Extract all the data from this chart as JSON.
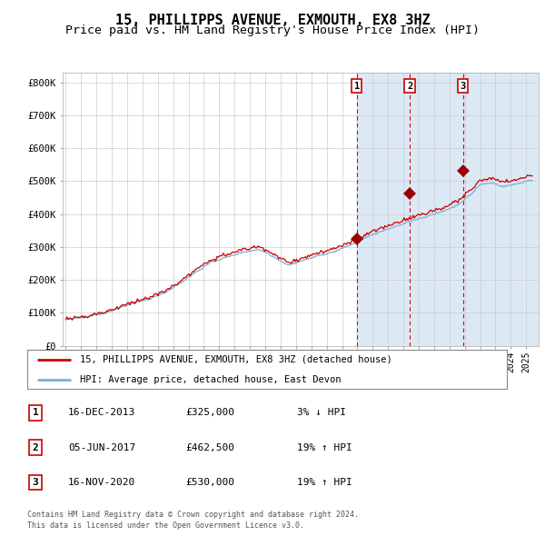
{
  "title": "15, PHILLIPPS AVENUE, EXMOUTH, EX8 3HZ",
  "subtitle": "Price paid vs. HM Land Registry's House Price Index (HPI)",
  "title_fontsize": 11,
  "subtitle_fontsize": 9.5,
  "sale_times": [
    2013.96,
    2017.42,
    2020.88
  ],
  "sale_prices": [
    325000,
    462500,
    530000
  ],
  "sale_labels": [
    "1",
    "2",
    "3"
  ],
  "legend_line1": "15, PHILLIPPS AVENUE, EXMOUTH, EX8 3HZ (detached house)",
  "legend_line2": "HPI: Average price, detached house, East Devon",
  "table_rows": [
    {
      "num": "1",
      "date": "16-DEC-2013",
      "price": "£325,000",
      "change": "3% ↓ HPI"
    },
    {
      "num": "2",
      "date": "05-JUN-2017",
      "price": "£462,500",
      "change": "19% ↑ HPI"
    },
    {
      "num": "3",
      "date": "16-NOV-2020",
      "price": "£530,000",
      "change": "19% ↑ HPI"
    }
  ],
  "footer_line1": "Contains HM Land Registry data © Crown copyright and database right 2024.",
  "footer_line2": "This data is licensed under the Open Government Licence v3.0.",
  "ytick_labels": [
    "£0",
    "£100K",
    "£200K",
    "£300K",
    "£400K",
    "£500K",
    "£600K",
    "£700K",
    "£800K"
  ],
  "ytick_values": [
    0,
    100000,
    200000,
    300000,
    400000,
    500000,
    600000,
    700000,
    800000
  ],
  "ylim": [
    0,
    830000
  ],
  "xlim_start": 1994.8,
  "xlim_end": 2025.8,
  "background_color": "#ffffff",
  "plot_bg_color": "#ffffff",
  "shaded_region_color": "#dce9f5",
  "grid_color": "#cccccc",
  "hpi_line_color": "#7ab0d4",
  "price_line_color": "#cc0000",
  "sale_marker_color": "#990000",
  "dashed_line_color": "#dd0000",
  "num_box_color": "#cc0000",
  "hpi_anchor_years": [
    1995.0,
    1996.0,
    1997.5,
    1999.0,
    2000.5,
    2001.5,
    2002.5,
    2003.5,
    2004.5,
    2005.5,
    2006.5,
    2007.5,
    2008.0,
    2008.8,
    2009.5,
    2010.5,
    2011.5,
    2012.5,
    2013.5,
    2014.5,
    2015.5,
    2016.5,
    2017.5,
    2018.5,
    2019.5,
    2020.5,
    2021.5,
    2022.0,
    2022.8,
    2023.5,
    2024.5,
    2025.2
  ],
  "hpi_anchor_values": [
    82000,
    87000,
    102000,
    128000,
    148000,
    168000,
    198000,
    232000,
    263000,
    278000,
    293000,
    302000,
    295000,
    272000,
    253000,
    268000,
    283000,
    295000,
    314000,
    338000,
    357000,
    373000,
    392000,
    405000,
    420000,
    440000,
    478000,
    505000,
    510000,
    498000,
    508000,
    518000
  ]
}
